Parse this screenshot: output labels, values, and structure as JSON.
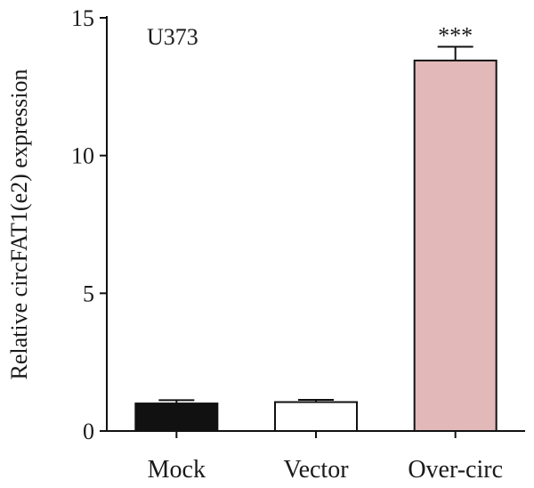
{
  "chart_data": {
    "type": "bar",
    "panel_label": "U373",
    "ylabel": "Relative circFAT1(e2) expression",
    "xlabel": "",
    "ylim": [
      0,
      15
    ],
    "yticks": [
      0,
      5,
      10,
      15
    ],
    "categories": [
      "Mock",
      "Vector",
      "Over-circ"
    ],
    "values": [
      1.0,
      1.05,
      13.45
    ],
    "errors": [
      0.12,
      0.08,
      0.5
    ],
    "significance": [
      "",
      "",
      "***"
    ],
    "bar_fill": [
      "#111111",
      "#ffffff",
      "#e2b8b9"
    ],
    "bar_stroke": "#111111",
    "grid": false,
    "legend": "none"
  }
}
